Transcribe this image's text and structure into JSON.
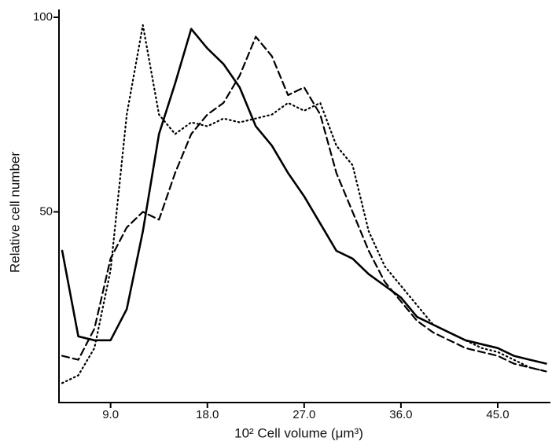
{
  "chart_data": {
    "type": "line",
    "x_label": "10² Cell volume (μm³)",
    "y_label": "Relative cell number",
    "xlim": [
      4.2,
      49.9
    ],
    "ylim": [
      1,
      100
    ],
    "xticks": [
      {
        "value": 9,
        "label": "9.0"
      },
      {
        "value": 18,
        "label": "18.0"
      },
      {
        "value": 27,
        "label": "27.0"
      },
      {
        "value": 36,
        "label": "36.0"
      },
      {
        "value": 45,
        "label": "45.0"
      }
    ],
    "yticks": [
      50,
      100
    ],
    "grid": false,
    "x": [
      4.5,
      6,
      7.5,
      9,
      10.5,
      12,
      13.5,
      15,
      16.5,
      18,
      19.5,
      21,
      22.5,
      24,
      25.5,
      27,
      28.5,
      30,
      31.5,
      33,
      34.5,
      36,
      37.5,
      39,
      40.5,
      42,
      43.5,
      45,
      46.5,
      48,
      49.5
    ],
    "series": [
      {
        "color": "#000000",
        "dash": "solid",
        "values": [
          40,
          18,
          17,
          17,
          25,
          45,
          70,
          83,
          97,
          92,
          88,
          82,
          72,
          67,
          60,
          54,
          47,
          40,
          38,
          34,
          31,
          28,
          23,
          21,
          19,
          17,
          16,
          15,
          13,
          12,
          11
        ]
      },
      {
        "color": "#000000",
        "dash": "dashed",
        "values": [
          13,
          12,
          20,
          38,
          46,
          50,
          48,
          60,
          70,
          75,
          78,
          85,
          95,
          90,
          80,
          82,
          75,
          60,
          50,
          40,
          32,
          27,
          22,
          19,
          17,
          15,
          14,
          13,
          11,
          10,
          9
        ]
      },
      {
        "color": "#000000",
        "dash": "dotted",
        "values": [
          6,
          8,
          15,
          35,
          75,
          98,
          75,
          70,
          73,
          72,
          74,
          73,
          74,
          75,
          78,
          76,
          78,
          67,
          62,
          45,
          36,
          31,
          26,
          21,
          19,
          17,
          15,
          14,
          12,
          10,
          9
        ]
      }
    ]
  }
}
